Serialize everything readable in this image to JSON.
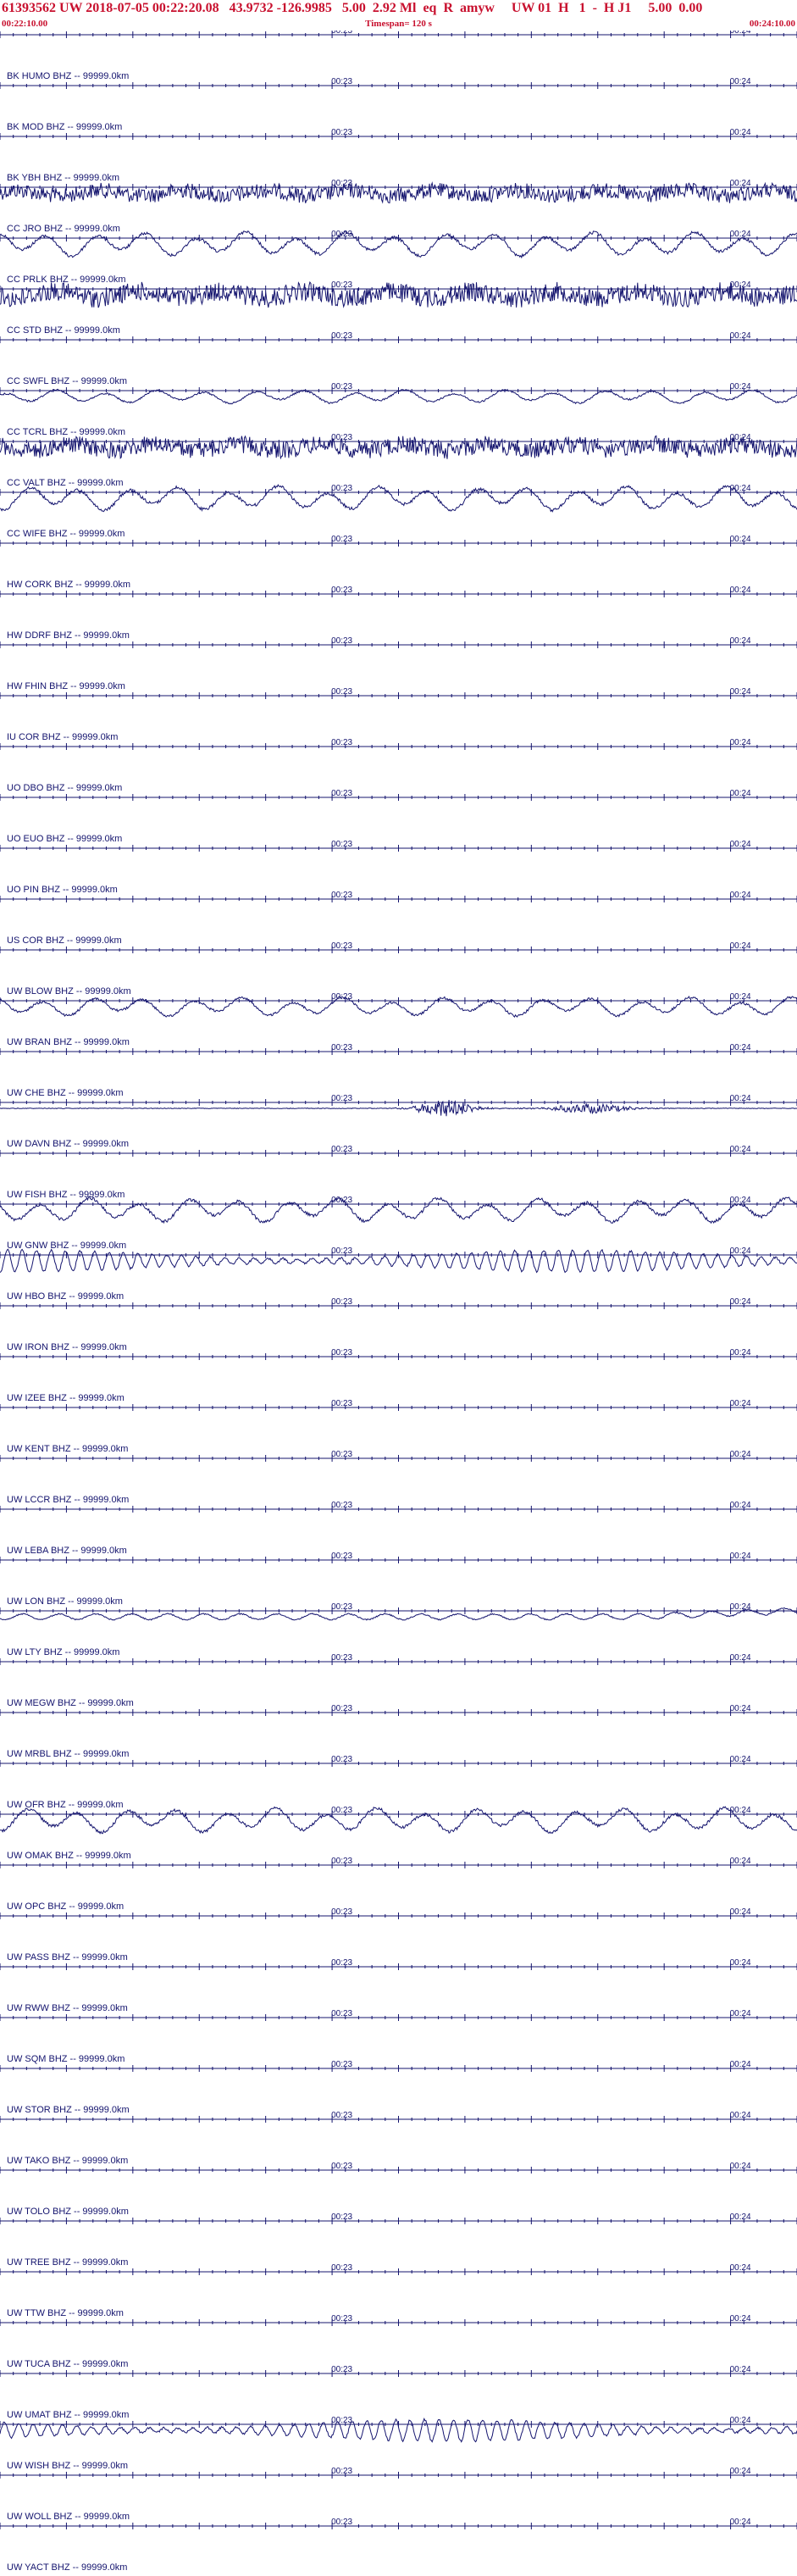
{
  "header": {
    "title": "61393562 UW 2018-07-05 00:22:20.08   43.9732 -126.9985   5.00  2.92 Ml  eq  R  amyw     UW 01  H   1  -  H J1     5.00  0.00",
    "start_time": "00:22:10.00",
    "timespan": "Timespan= 120 s",
    "end_time": "00:24:10.00"
  },
  "colors": {
    "header_text": "#c8102e",
    "trace": "#14146e",
    "axis": "#14146e",
    "background": "#ffffff"
  },
  "chart_data": {
    "type": "line",
    "description_source": "seismogram record section",
    "x_unit": "s",
    "xlim": [
      0,
      120
    ],
    "tick_labels": [
      "00:23",
      "00:24"
    ],
    "tick_label_offsets_s": [
      50,
      110
    ],
    "traces": [
      {
        "label": "BK HUMO BHZ -- 99999.0km",
        "waveform": "none",
        "amplitude": 0
      },
      {
        "label": "BK MOD BHZ -- 99999.0km",
        "waveform": "none",
        "amplitude": 0
      },
      {
        "label": "BK YBH BHZ -- 99999.0km",
        "waveform": "noise",
        "amplitude": 0.8
      },
      {
        "label": "CC JRO BHZ -- 99999.0km",
        "waveform": "long-period",
        "amplitude": 0.9
      },
      {
        "label": "CC PRLK BHZ -- 99999.0km",
        "waveform": "noise",
        "amplitude": 1.0
      },
      {
        "label": "CC STD BHZ -- 99999.0km",
        "waveform": "none",
        "amplitude": 0
      },
      {
        "label": "CC SWFL BHZ -- 99999.0km",
        "waveform": "long-period",
        "amplitude": 0.5
      },
      {
        "label": "CC TCRL BHZ -- 99999.0km",
        "waveform": "noise",
        "amplitude": 0.9
      },
      {
        "label": "CC VALT BHZ -- 99999.0km",
        "waveform": "long-period",
        "amplitude": 0.9
      },
      {
        "label": "CC WIFE BHZ -- 99999.0km",
        "waveform": "none",
        "amplitude": 0
      },
      {
        "label": "HW CORK BHZ -- 99999.0km",
        "waveform": "none",
        "amplitude": 0
      },
      {
        "label": "HW DDRF BHZ -- 99999.0km",
        "waveform": "none",
        "amplitude": 0
      },
      {
        "label": "HW FHIN BHZ -- 99999.0km",
        "waveform": "none",
        "amplitude": 0
      },
      {
        "label": "IU COR BHZ -- 99999.0km",
        "waveform": "none",
        "amplitude": 0
      },
      {
        "label": "UO DBO BHZ -- 99999.0km",
        "waveform": "none",
        "amplitude": 0
      },
      {
        "label": "UO EUO BHZ -- 99999.0km",
        "waveform": "none",
        "amplitude": 0
      },
      {
        "label": "UO PIN BHZ -- 99999.0km",
        "waveform": "none",
        "amplitude": 0
      },
      {
        "label": "US COR BHZ -- 99999.0km",
        "waveform": "none",
        "amplitude": 0
      },
      {
        "label": "UW BLOW BHZ -- 99999.0km",
        "waveform": "long-period",
        "amplitude": 0.7
      },
      {
        "label": "UW BRAN BHZ -- 99999.0km",
        "waveform": "none",
        "amplitude": 0
      },
      {
        "label": "UW CHE BHZ -- 99999.0km",
        "waveform": "event",
        "amplitude": 0.6
      },
      {
        "label": "UW DAVN BHZ -- 99999.0km",
        "waveform": "none",
        "amplitude": 0
      },
      {
        "label": "UW FISH BHZ -- 99999.0km",
        "waveform": "long-period",
        "amplitude": 0.9
      },
      {
        "label": "UW GNW BHZ -- 99999.0km",
        "waveform": "oscillation",
        "amplitude": 0.8
      },
      {
        "label": "UW HBO BHZ -- 99999.0km",
        "waveform": "none",
        "amplitude": 0
      },
      {
        "label": "UW IRON BHZ -- 99999.0km",
        "waveform": "none",
        "amplitude": 0
      },
      {
        "label": "UW IZEE BHZ -- 99999.0km",
        "waveform": "none",
        "amplitude": 0
      },
      {
        "label": "UW KENT BHZ -- 99999.0km",
        "waveform": "none",
        "amplitude": 0
      },
      {
        "label": "UW LCCR BHZ -- 99999.0km",
        "waveform": "none",
        "amplitude": 0
      },
      {
        "label": "UW LEBA BHZ -- 99999.0km",
        "waveform": "none",
        "amplitude": 0
      },
      {
        "label": "UW LON BHZ -- 99999.0km",
        "waveform": "drift",
        "amplitude": 0.6
      },
      {
        "label": "UW LTY BHZ -- 99999.0km",
        "waveform": "none",
        "amplitude": 0
      },
      {
        "label": "UW MEGW BHZ -- 99999.0km",
        "waveform": "none",
        "amplitude": 0
      },
      {
        "label": "UW MRBL BHZ -- 99999.0km",
        "waveform": "none",
        "amplitude": 0
      },
      {
        "label": "UW OFR BHZ -- 99999.0km",
        "waveform": "long-period",
        "amplitude": 0.9
      },
      {
        "label": "UW OMAK BHZ -- 99999.0km",
        "waveform": "none",
        "amplitude": 0
      },
      {
        "label": "UW OPC BHZ -- 99999.0km",
        "waveform": "none",
        "amplitude": 0
      },
      {
        "label": "UW PASS BHZ -- 99999.0km",
        "waveform": "none",
        "amplitude": 0
      },
      {
        "label": "UW RWW BHZ -- 99999.0km",
        "waveform": "none",
        "amplitude": 0
      },
      {
        "label": "UW SQM BHZ -- 99999.0km",
        "waveform": "none",
        "amplitude": 0
      },
      {
        "label": "UW STOR BHZ -- 99999.0km",
        "waveform": "none",
        "amplitude": 0
      },
      {
        "label": "UW TAKO BHZ -- 99999.0km",
        "waveform": "none",
        "amplitude": 0
      },
      {
        "label": "UW TOLO BHZ -- 99999.0km",
        "waveform": "none",
        "amplitude": 0
      },
      {
        "label": "UW TREE BHZ -- 99999.0km",
        "waveform": "none",
        "amplitude": 0
      },
      {
        "label": "UW TTW BHZ -- 99999.0km",
        "waveform": "none",
        "amplitude": 0
      },
      {
        "label": "UW TUCA BHZ -- 99999.0km",
        "waveform": "none",
        "amplitude": 0
      },
      {
        "label": "UW UMAT BHZ -- 99999.0km",
        "waveform": "oscillation",
        "amplitude": 0.8
      },
      {
        "label": "UW WISH BHZ -- 99999.0km",
        "waveform": "none",
        "amplitude": 0
      },
      {
        "label": "UW WOLL BHZ -- 99999.0km",
        "waveform": "none",
        "amplitude": 0
      },
      {
        "label": "UW YACT BHZ -- 99999.0km",
        "waveform": "none",
        "amplitude": 0
      }
    ]
  }
}
